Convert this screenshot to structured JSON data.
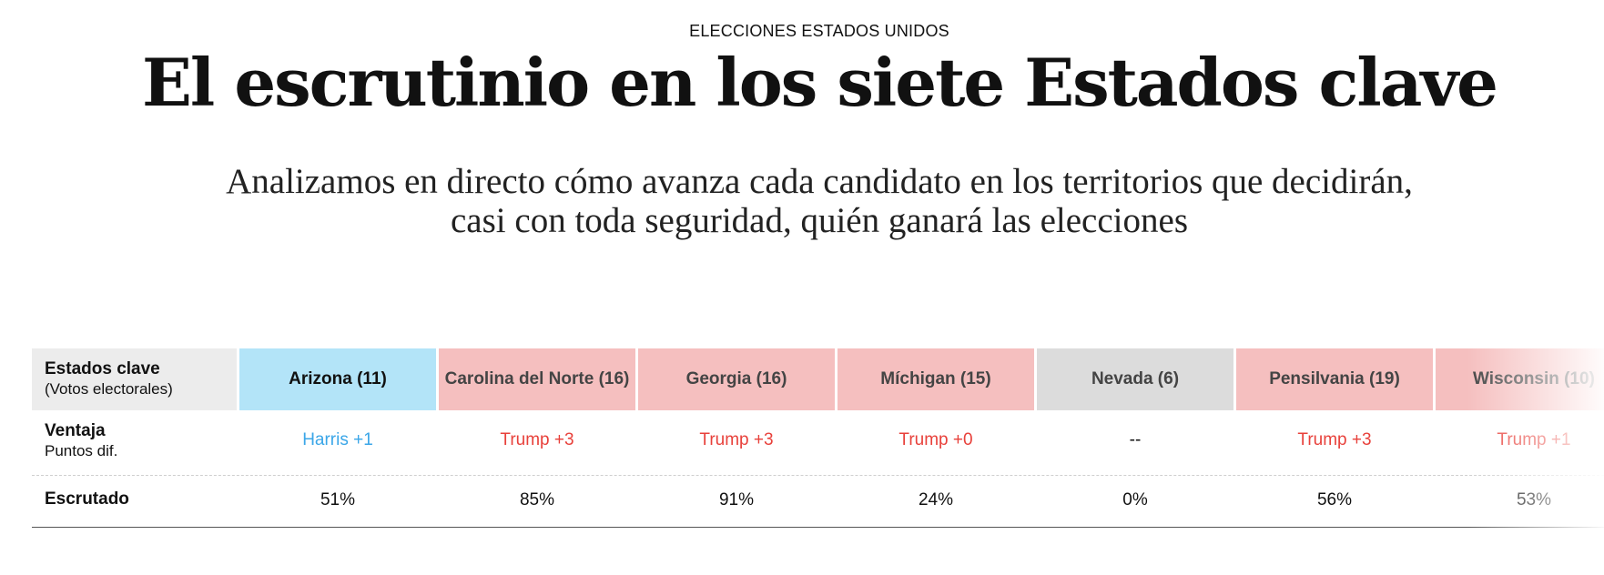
{
  "kicker": "ELECCIONES ESTADOS UNIDOS",
  "headline": "El escrutinio en los siete Estados clave",
  "subhead": {
    "line1": "Analizamos en directo cómo avanza cada candidato en los territorios que decidirán,",
    "line2": "casi con toda seguridad, quién ganará las elecciones"
  },
  "table": {
    "row_states_title": "Estados clave",
    "row_states_sub": "(Votos electorales)",
    "row_adv_title": "Ventaja",
    "row_adv_sub": "Puntos dif.",
    "row_esc_title": "Escrutado",
    "states": [
      {
        "name": "Arizona (11)",
        "advantage": "Harris +1",
        "counted": "51%",
        "bg": "#b3e4f8",
        "adv_color": "#3aa6e8"
      },
      {
        "name": "Carolina del Norte (16)",
        "advantage": "Trump +3",
        "counted": "85%",
        "bg": "#f5bfbf",
        "adv_color": "#e8413b"
      },
      {
        "name": "Georgia (16)",
        "advantage": "Trump +3",
        "counted": "91%",
        "bg": "#f5bfbf",
        "adv_color": "#e8413b"
      },
      {
        "name": "Míchigan (15)",
        "advantage": "Trump +0",
        "counted": "24%",
        "bg": "#f5bfbf",
        "adv_color": "#e8413b"
      },
      {
        "name": "Nevada (6)",
        "advantage": "--",
        "counted": "0%",
        "bg": "#dcdcdc",
        "adv_color": "#111111"
      },
      {
        "name": "Pensilvania (19)",
        "advantage": "Trump +3",
        "counted": "56%",
        "bg": "#f5bfbf",
        "adv_color": "#e8413b"
      },
      {
        "name": "Wisconsin (10)",
        "advantage": "Trump +1",
        "counted": "53%",
        "bg": "#f5bfbf",
        "adv_color": "#e8413b"
      }
    ]
  }
}
